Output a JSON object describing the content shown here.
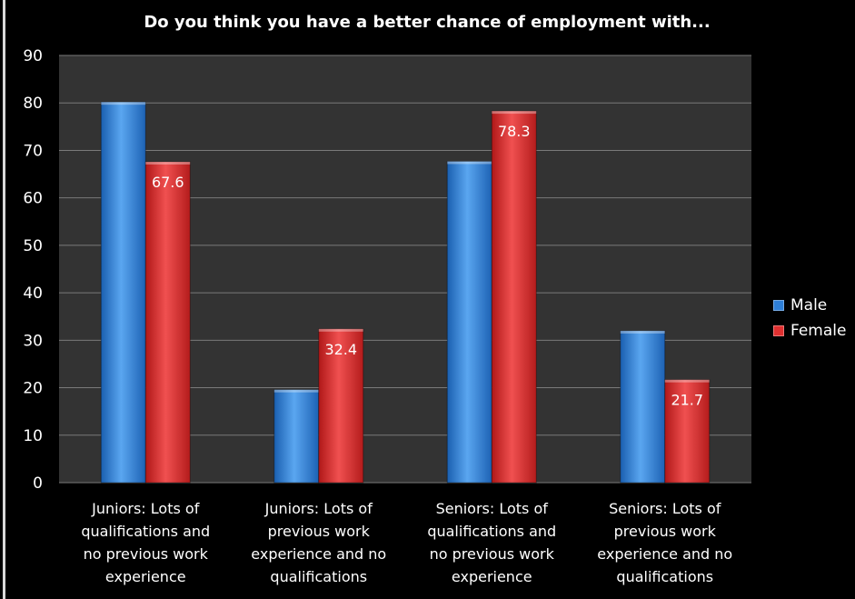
{
  "chart_data": {
    "type": "bar",
    "title": "Do you think you have a better chance of employment with...",
    "categories": [
      [
        "Juniors: Lots of",
        "qualifications and",
        "no previous work",
        "experience"
      ],
      [
        "Juniors: Lots of",
        "previous work",
        "experience and no",
        "qualifications"
      ],
      [
        "Seniors: Lots of",
        "qualifications and",
        "no previous work",
        "experience"
      ],
      [
        "Seniors: Lots of",
        "previous work",
        "experience and no",
        "qualifications"
      ]
    ],
    "series": [
      {
        "name": "Male",
        "values": [
          80.2,
          19.6,
          67.7,
          32.0
        ],
        "color": "#2e7fd8",
        "show_labels": false
      },
      {
        "name": "Female",
        "values": [
          67.6,
          32.4,
          78.3,
          21.7
        ],
        "color": "#e03030",
        "show_labels": true
      }
    ],
    "ylim": [
      0,
      90
    ],
    "yticks": [
      0,
      10,
      20,
      30,
      40,
      50,
      60,
      70,
      80,
      90
    ],
    "grid": true,
    "legend": "right",
    "plot_background": "#333333"
  }
}
